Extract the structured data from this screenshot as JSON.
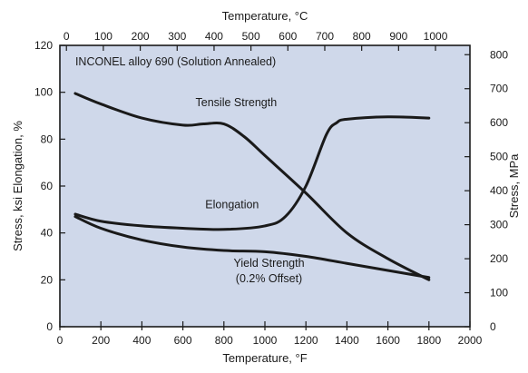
{
  "chart_data": {
    "type": "line",
    "title": "INCONEL alloy 690 (Solution Annealed)",
    "x_bottom": {
      "label": "Temperature, °F",
      "range": [
        0,
        2000
      ],
      "ticks": [
        "0",
        "200",
        "400",
        "600",
        "800",
        "1000",
        "1200",
        "1400",
        "1600",
        "1800",
        "2000"
      ]
    },
    "x_top": {
      "label": "Temperature, °C",
      "ticks": [
        "0",
        "100",
        "200",
        "300",
        "400",
        "500",
        "600",
        "700",
        "800",
        "900",
        "1000"
      ]
    },
    "y_left": {
      "label_parts": [
        "Stress, ksi",
        "Elongation, %"
      ],
      "range": [
        0,
        120
      ],
      "ticks": [
        "0",
        "20",
        "40",
        "60",
        "80",
        "100",
        "120"
      ]
    },
    "y_right": {
      "label": "Stress, MPa",
      "ticks": [
        "0",
        "100",
        "200",
        "300",
        "400",
        "500",
        "600",
        "700",
        "800"
      ]
    },
    "grid": false,
    "background": "#cfd8ea",
    "line_color": "#1a1a1a",
    "series": [
      {
        "name": "Tensile Strength",
        "x": [
          75,
          200,
          400,
          600,
          700,
          800,
          900,
          1000,
          1200,
          1400,
          1600,
          1800
        ],
        "y": [
          99.5,
          95,
          89,
          86,
          86.5,
          86.5,
          81,
          73,
          57,
          40,
          29,
          20
        ]
      },
      {
        "name": "Elongation",
        "x": [
          75,
          200,
          400,
          600,
          800,
          1000,
          1100,
          1200,
          1300,
          1350,
          1400,
          1600,
          1800
        ],
        "y": [
          48,
          45,
          43,
          42,
          41.5,
          43,
          47,
          60,
          82,
          87,
          88.5,
          89.5,
          89
        ]
      },
      {
        "name": "Yield Strength",
        "x": [
          75,
          200,
          400,
          600,
          800,
          1000,
          1200,
          1400,
          1600,
          1800
        ],
        "y": [
          47,
          42,
          37,
          34,
          32.5,
          32,
          30,
          27,
          24,
          21
        ]
      }
    ],
    "annotations": [
      {
        "text": "Tensile Strength",
        "x": 860,
        "y": 94
      },
      {
        "text": "Elongation",
        "x": 840,
        "y": 50.5
      },
      {
        "text": "Yield Strength",
        "x": 1020,
        "y": 25.5
      },
      {
        "text": "(0.2% Offset)",
        "x": 1020,
        "y": 19
      }
    ]
  }
}
